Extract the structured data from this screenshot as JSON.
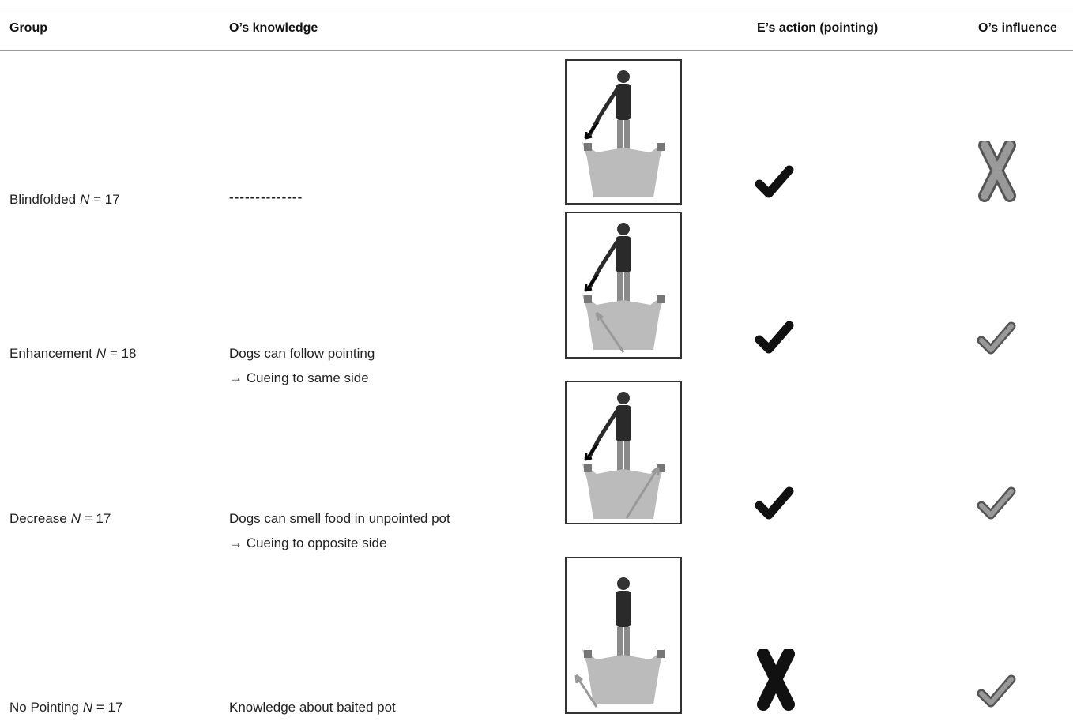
{
  "header": [
    "Group",
    "O’s knowledge",
    "E’s action (pointing)",
    "O’s influence"
  ],
  "rows": [
    {
      "group": "Blindfolded",
      "n": "N = 17",
      "knowledge": [
        "--------------"
      ]
    },
    {
      "group": "Enhancement",
      "n": "N = 18",
      "knowledge": [
        "Dogs can follow pointing",
        "→ Cueing to same side"
      ]
    },
    {
      "group": "Decrease",
      "n": "N = 17",
      "knowledge": [
        "Dogs can smell food in unpointed pot",
        "→ Cueing to opposite side"
      ]
    },
    {
      "group": "No Pointing",
      "n": "N = 17",
      "knowledge": [
        "Knowledge about baited pot"
      ]
    }
  ]
}
